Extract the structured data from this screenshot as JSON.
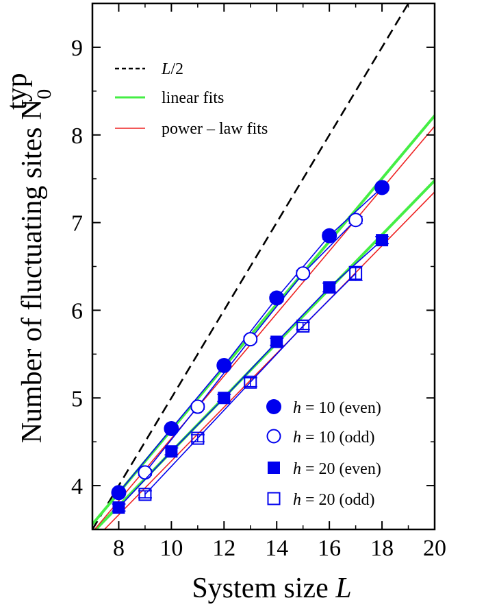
{
  "chart_data": {
    "type": "line",
    "xlabel_prefix": "System size ",
    "xlabel_var": "L",
    "ylabel_main": "Number of fluctuating sites N",
    "ylabel_sub": "0",
    "ylabel_sup": "typ",
    "xlim": [
      7,
      20
    ],
    "ylim": [
      3.5,
      9.5
    ],
    "xticks": [
      8,
      10,
      12,
      14,
      16,
      18,
      20
    ],
    "yticks": [
      4,
      5,
      6,
      7,
      8,
      9
    ],
    "series": [
      {
        "name": "h = 10 (even)",
        "var": "h",
        "label": " = 10 (even)",
        "marker": "filled-circle",
        "x": [
          8,
          10,
          12,
          14,
          16,
          18
        ],
        "y": [
          3.92,
          4.65,
          5.37,
          6.14,
          6.85,
          7.4
        ],
        "err": [
          0.03,
          0.03,
          0.03,
          0.04,
          0.04,
          0.03
        ]
      },
      {
        "name": "h = 10 (odd)",
        "var": "h",
        "label": " = 10 (odd)",
        "marker": "open-circle",
        "x": [
          9,
          11,
          13,
          15,
          17
        ],
        "y": [
          4.15,
          4.9,
          5.67,
          6.42,
          7.03
        ],
        "err": [
          0.03,
          0.03,
          0.03,
          0.03,
          0.04
        ]
      },
      {
        "name": "h = 20 (even)",
        "var": "h",
        "label": " = 20 (even)",
        "marker": "filled-square",
        "x": [
          8,
          10,
          12,
          14,
          16,
          18
        ],
        "y": [
          3.75,
          4.39,
          5.0,
          5.64,
          6.26,
          6.8
        ],
        "err": [
          0.04,
          0.04,
          0.04,
          0.04,
          0.05,
          0.04
        ]
      },
      {
        "name": "h = 20 (odd)",
        "var": "h",
        "label": " = 20 (odd)",
        "marker": "open-square",
        "x": [
          9,
          11,
          13,
          15,
          17
        ],
        "y": [
          3.9,
          4.54,
          5.18,
          5.82,
          6.42
        ],
        "err": [
          0.04,
          0.04,
          0.05,
          0.04,
          0.08
        ]
      }
    ],
    "reference_lines": [
      {
        "name": "L/2",
        "label_var": "L",
        "label_rest": "/2",
        "style": "dashed",
        "color": "#000000",
        "x": [
          7,
          20
        ],
        "y": [
          3.5,
          10.0
        ]
      },
      {
        "name": "linear fits",
        "label": "linear fits",
        "color": "#44ee44",
        "fits": [
          {
            "x": [
              7,
              20
            ],
            "y": [
              3.56,
              8.22
            ]
          },
          {
            "x": [
              7,
              20
            ],
            "y": [
              3.46,
              7.48
            ]
          }
        ]
      },
      {
        "name": "power - law fits",
        "label": "power – law fits",
        "color": "#ee2222",
        "fits": [
          {
            "x": [
              7,
              20
            ],
            "y": [
              3.47,
              8.1
            ]
          },
          {
            "x": [
              7,
              20
            ],
            "y": [
              3.36,
              7.35
            ]
          }
        ]
      }
    ],
    "colors": {
      "data": "#0000ee",
      "axes": "#000000"
    }
  }
}
